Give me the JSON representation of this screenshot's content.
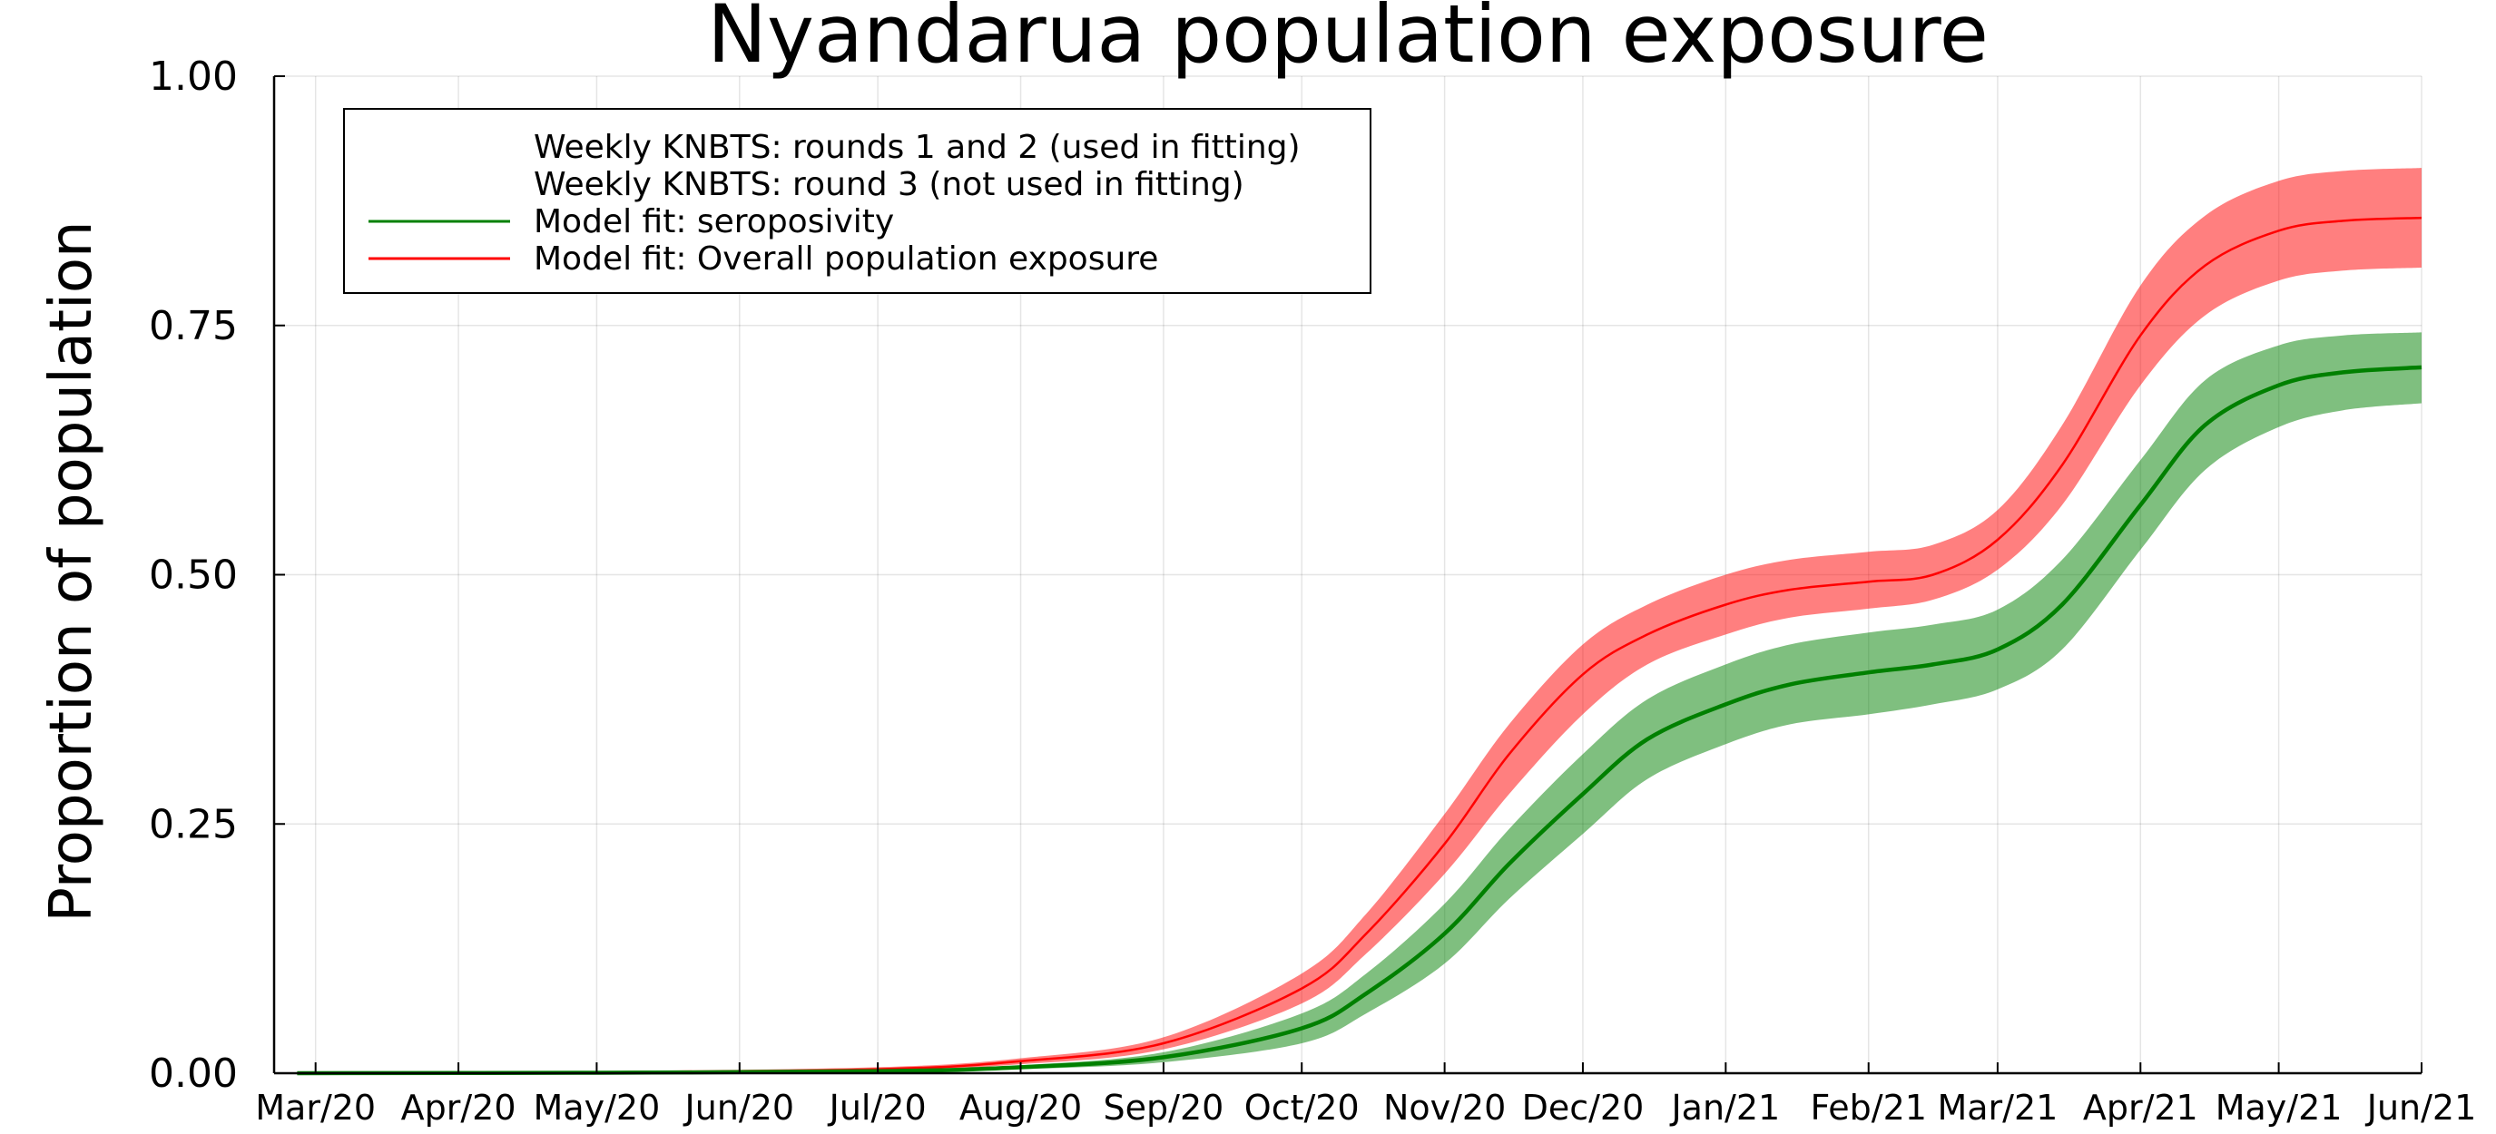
{
  "chart_data": {
    "type": "line",
    "title": "Nyandarua population exposure",
    "xlabel": "",
    "ylabel": "Proportion of population",
    "x_ticks": [
      "Mar/20",
      "Apr/20",
      "May/20",
      "Jun/20",
      "Jul/20",
      "Aug/20",
      "Sep/20",
      "Oct/20",
      "Nov/20",
      "Dec/20",
      "Jan/21",
      "Feb/21",
      "Mar/21",
      "Apr/21",
      "May/21",
      "Jun/21"
    ],
    "y_ticks": [
      "0.00",
      "0.25",
      "0.50",
      "0.75",
      "1.00"
    ],
    "xlim": [
      "2020-02-21",
      "2021-06-01"
    ],
    "ylim": [
      0,
      1
    ],
    "grid": true,
    "legend_position": "top-left",
    "legend": [
      {
        "label": "Weekly KNBTS: rounds 1 and 2 (used in fitting)",
        "marker": "none"
      },
      {
        "label": "Weekly KNBTS: round 3 (not used in fitting)",
        "marker": "none"
      },
      {
        "label": "Model fit: seroposivity",
        "color": "#008000"
      },
      {
        "label": "Model fit: Overall population exposure",
        "color": "#ff0000"
      }
    ],
    "series": [
      {
        "name": "Model fit: Overall population exposure",
        "color": "#ff0000",
        "band_color": "#ff0000",
        "x": [
          "2020-02-26",
          "2020-05-01",
          "2020-07-01",
          "2020-08-01",
          "2020-09-01",
          "2020-10-01",
          "2020-10-15",
          "2020-11-01",
          "2020-11-15",
          "2020-12-01",
          "2020-12-15",
          "2021-01-01",
          "2021-01-15",
          "2021-02-01",
          "2021-02-15",
          "2021-03-01",
          "2021-03-15",
          "2021-04-01",
          "2021-04-15",
          "2021-05-01",
          "2021-05-15",
          "2021-06-01"
        ],
        "y": [
          0.0,
          0.001,
          0.004,
          0.012,
          0.03,
          0.085,
          0.14,
          0.23,
          0.32,
          0.4,
          0.44,
          0.47,
          0.485,
          0.493,
          0.5,
          0.535,
          0.61,
          0.74,
          0.81,
          0.845,
          0.855,
          0.858
        ],
        "lower": [
          0.0,
          0.0,
          0.003,
          0.009,
          0.024,
          0.07,
          0.12,
          0.2,
          0.28,
          0.36,
          0.41,
          0.44,
          0.457,
          0.466,
          0.475,
          0.505,
          0.57,
          0.69,
          0.76,
          0.795,
          0.805,
          0.808
        ],
        "upper": [
          0.0,
          0.002,
          0.006,
          0.015,
          0.036,
          0.1,
          0.16,
          0.26,
          0.35,
          0.43,
          0.47,
          0.5,
          0.515,
          0.523,
          0.53,
          0.565,
          0.65,
          0.79,
          0.86,
          0.895,
          0.905,
          0.908
        ]
      },
      {
        "name": "Model fit: seroposivity",
        "color": "#008000",
        "band_color": "#008000",
        "x": [
          "2020-02-26",
          "2020-05-01",
          "2020-07-01",
          "2020-08-01",
          "2020-09-01",
          "2020-10-01",
          "2020-10-15",
          "2020-11-01",
          "2020-11-15",
          "2020-12-01",
          "2020-12-15",
          "2021-01-01",
          "2021-01-15",
          "2021-02-01",
          "2021-02-15",
          "2021-03-01",
          "2021-03-15",
          "2021-04-01",
          "2021-04-15",
          "2021-05-01",
          "2021-05-15",
          "2021-06-01"
        ],
        "y": [
          0.0,
          0.0005,
          0.002,
          0.006,
          0.016,
          0.045,
          0.08,
          0.14,
          0.21,
          0.28,
          0.335,
          0.37,
          0.39,
          0.402,
          0.41,
          0.425,
          0.47,
          0.57,
          0.65,
          0.69,
          0.703,
          0.708
        ],
        "lower": [
          0.0,
          0.0,
          0.001,
          0.004,
          0.011,
          0.03,
          0.06,
          0.11,
          0.175,
          0.24,
          0.295,
          0.33,
          0.35,
          0.36,
          0.37,
          0.385,
          0.425,
          0.525,
          0.605,
          0.648,
          0.665,
          0.672
        ],
        "upper": [
          0.0,
          0.001,
          0.003,
          0.008,
          0.021,
          0.06,
          0.1,
          0.17,
          0.245,
          0.32,
          0.375,
          0.41,
          0.43,
          0.442,
          0.45,
          0.465,
          0.515,
          0.615,
          0.695,
          0.73,
          0.74,
          0.743
        ]
      }
    ]
  }
}
